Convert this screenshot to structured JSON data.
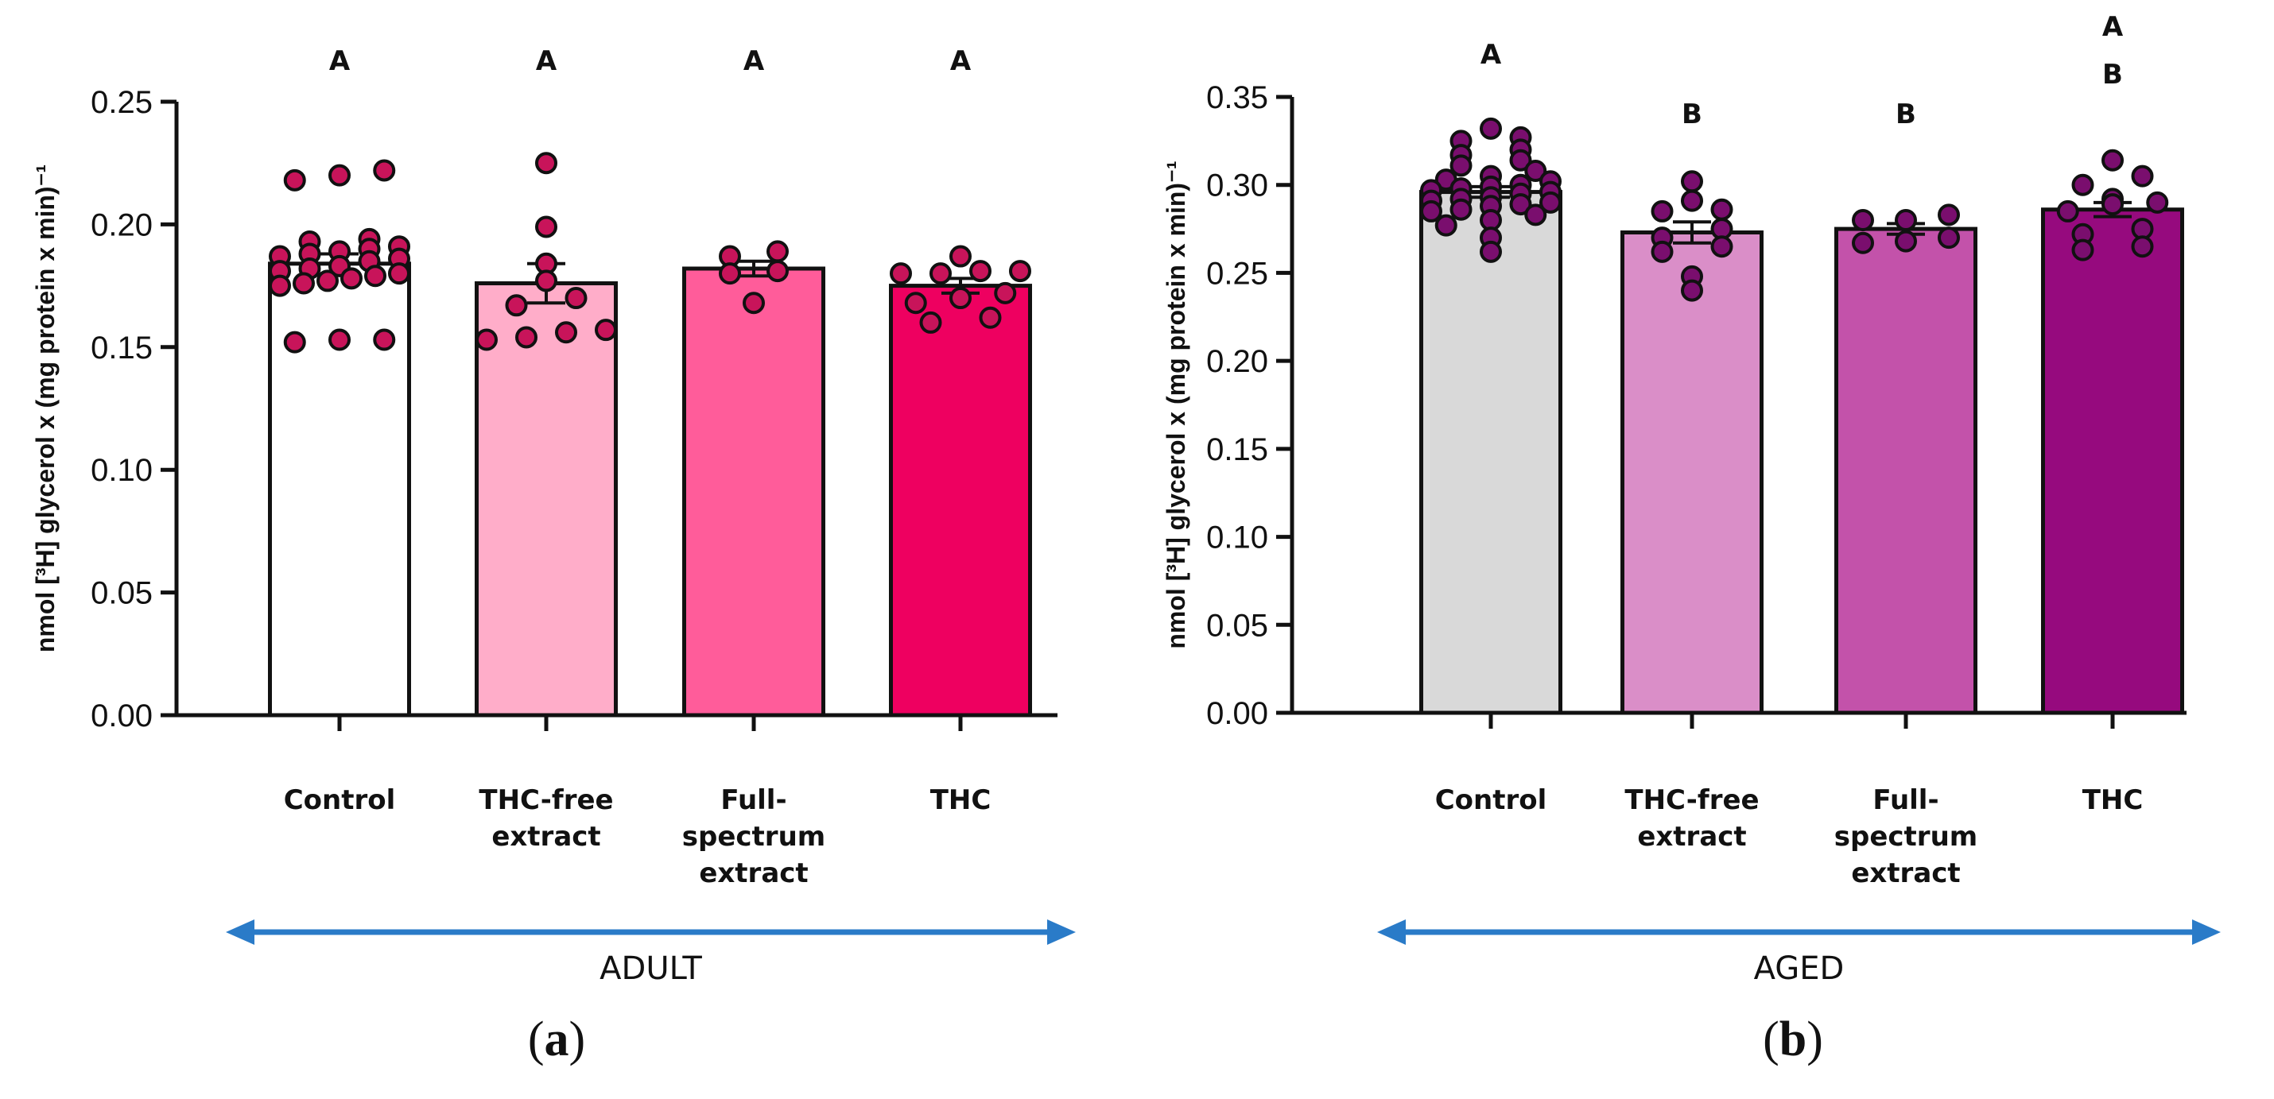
{
  "chart_data": [
    {
      "panel": "(a)",
      "panel_letter": "a",
      "type": "bar",
      "ylabel": "nmol [³H] glycerol x (mg protein x min)⁻¹",
      "ylim": [
        0,
        0.25
      ],
      "yticks": [
        "0.00",
        "0.05",
        "0.10",
        "0.15",
        "0.20",
        "0.25"
      ],
      "group_label": "ADULT",
      "arrow_color": "#2a7bc8",
      "categories": [
        {
          "label_lines": [
            "Control"
          ],
          "value": 0.184,
          "sem": 0.004,
          "fill": "#ffffff",
          "sig": [
            "A"
          ],
          "points": [
            0.222,
            0.218,
            0.22,
            0.193,
            0.194,
            0.191,
            0.19,
            0.189,
            0.188,
            0.187,
            0.186,
            0.185,
            0.183,
            0.182,
            0.181,
            0.18,
            0.179,
            0.178,
            0.177,
            0.176,
            0.175,
            0.153,
            0.152,
            0.153
          ]
        },
        {
          "label_lines": [
            "THC-free",
            "extract"
          ],
          "value": 0.176,
          "sem": 0.008,
          "fill": "#ffadc9",
          "sig": [
            "A"
          ],
          "points": [
            0.225,
            0.199,
            0.184,
            0.177,
            0.17,
            0.167,
            0.157,
            0.156,
            0.154,
            0.153
          ]
        },
        {
          "label_lines": [
            "Full-",
            "spectrum",
            "extract"
          ],
          "value": 0.182,
          "sem": 0.003,
          "fill": "#ff5c9a",
          "sig": [
            "A"
          ],
          "points": [
            0.189,
            0.187,
            0.181,
            0.18,
            0.168
          ]
        },
        {
          "label_lines": [
            "THC"
          ],
          "value": 0.175,
          "sem": 0.003,
          "fill": "#ee0060",
          "sig": [
            "A"
          ],
          "points": [
            0.187,
            0.181,
            0.18,
            0.181,
            0.18,
            0.172,
            0.17,
            0.168,
            0.16,
            0.162
          ]
        }
      ],
      "point_color": "#c8145a"
    },
    {
      "panel": "(b)",
      "panel_letter": "b",
      "type": "bar",
      "ylabel": "nmol [³H] glycerol x (mg protein x min)⁻¹",
      "ylim": [
        0,
        0.35
      ],
      "yticks": [
        "0.00",
        "0.05",
        "0.10",
        "0.15",
        "0.20",
        "0.25",
        "0.30",
        "0.35"
      ],
      "group_label": "AGED",
      "arrow_color": "#2a7bc8",
      "categories": [
        {
          "label_lines": [
            "Control"
          ],
          "value": 0.296,
          "sem": 0.003,
          "fill": "#d9d9d9",
          "sig": [
            "A"
          ],
          "points": [
            0.332,
            0.327,
            0.325,
            0.32,
            0.317,
            0.314,
            0.311,
            0.308,
            0.305,
            0.303,
            0.302,
            0.3,
            0.299,
            0.298,
            0.297,
            0.296,
            0.295,
            0.293,
            0.292,
            0.291,
            0.29,
            0.289,
            0.288,
            0.286,
            0.285,
            0.283,
            0.28,
            0.277,
            0.27,
            0.262
          ]
        },
        {
          "label_lines": [
            "THC-free",
            "extract"
          ],
          "value": 0.273,
          "sem": 0.006,
          "fill": "#da8ec8",
          "sig": [
            "B"
          ],
          "points": [
            0.302,
            0.291,
            0.286,
            0.285,
            0.275,
            0.27,
            0.265,
            0.262,
            0.248,
            0.24
          ]
        },
        {
          "label_lines": [
            "Full-",
            "spectrum",
            "extract"
          ],
          "value": 0.275,
          "sem": 0.003,
          "fill": "#c352aa",
          "sig": [
            "B"
          ],
          "points": [
            0.283,
            0.28,
            0.28,
            0.27,
            0.267,
            0.268
          ]
        },
        {
          "label_lines": [
            "THC"
          ],
          "value": 0.286,
          "sem": 0.004,
          "fill": "#960a7e",
          "sig": [
            "A",
            "B"
          ],
          "points": [
            0.314,
            0.305,
            0.3,
            0.292,
            0.29,
            0.289,
            0.285,
            0.275,
            0.272,
            0.265,
            0.263
          ]
        }
      ],
      "point_color": "#7a0e6e"
    }
  ]
}
